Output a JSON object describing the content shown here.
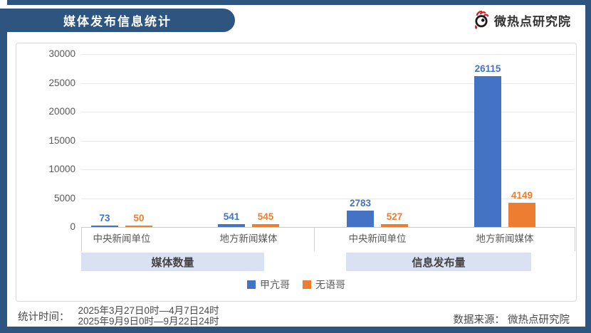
{
  "page": {
    "title": "媒体发布信息统计",
    "frame_color": "#2e5480"
  },
  "logo": {
    "text": "微热点研究院",
    "icon": "weibo-eye-icon",
    "icon_colors": {
      "lash_red": "#d2232a",
      "eye_dark": "#1f1a17"
    }
  },
  "chart_data": {
    "type": "bar",
    "title": "媒体发布信息统计",
    "grid": true,
    "data_labels": true,
    "legend_position": "bottom",
    "y_axis": {
      "min": 0,
      "max": 30000,
      "tick_interval": 5000,
      "ticks": [
        0,
        5000,
        10000,
        15000,
        20000,
        25000,
        30000
      ],
      "tick_labels": [
        "0",
        "5000",
        "10000",
        "15000",
        "20000",
        "25000",
        "30000"
      ]
    },
    "group_labels": [
      "媒体数量",
      "信息发布量"
    ],
    "categories": [
      "中央新闻单位",
      "地方新闻媒体",
      "中央新闻单位",
      "地方新闻媒体"
    ],
    "series": [
      {
        "name": "甲亢哥",
        "color": "#4472c4",
        "values": [
          73,
          541,
          2783,
          26115
        ]
      },
      {
        "name": "无语哥",
        "color": "#ed7d31",
        "values": [
          50,
          545,
          527,
          4149
        ]
      }
    ],
    "band_color": "#d9e1f2"
  },
  "footer": {
    "stat_time_label": "统计时间：",
    "stat_time_lines": [
      "2025年3月27日0时—4月7日24时",
      "2025年9月9日0时—9月22日24时"
    ],
    "source_text": "数据来源： 微热点研究院"
  }
}
